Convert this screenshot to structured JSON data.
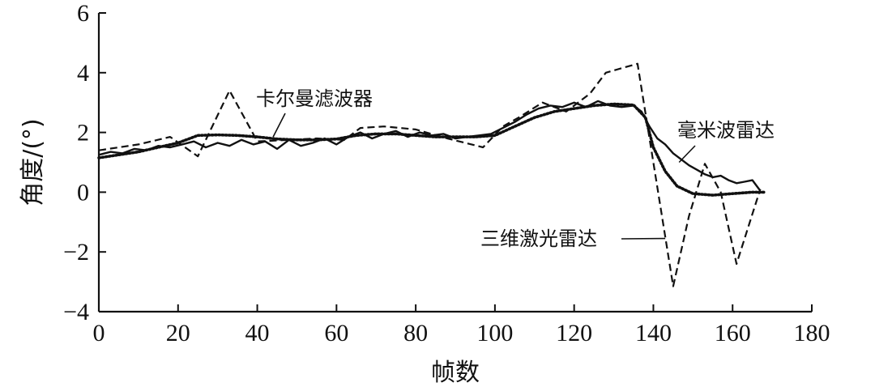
{
  "chart_data": {
    "type": "line",
    "title": "",
    "xlabel": "帧数",
    "ylabel": "角度/(°)",
    "xlim": [
      0,
      180
    ],
    "ylim": [
      -4,
      6
    ],
    "xticks": [
      0,
      20,
      40,
      60,
      80,
      100,
      120,
      140,
      160,
      180
    ],
    "yticks": [
      -4,
      -2,
      0,
      2,
      4,
      6
    ],
    "ytick_labels": [
      "−4",
      "−2",
      "0",
      "2",
      "4",
      "6"
    ],
    "grid": false,
    "legend": "none",
    "annotations": [
      {
        "text": "卡尔曼滤波器",
        "series": "卡尔曼滤波器"
      },
      {
        "text": "毫米波雷达",
        "series": "毫米波雷达"
      },
      {
        "text": "三维激光雷达",
        "series": "三维激光雷达"
      }
    ],
    "series": [
      {
        "name": "毫米波雷达",
        "style": "solid",
        "color": "#111111",
        "x": [
          0,
          3,
          6,
          9,
          12,
          15,
          18,
          21,
          24,
          27,
          30,
          33,
          36,
          39,
          42,
          45,
          48,
          51,
          54,
          57,
          60,
          63,
          66,
          69,
          72,
          75,
          78,
          81,
          84,
          87,
          90,
          93,
          96,
          99,
          102,
          105,
          108,
          111,
          114,
          117,
          120,
          123,
          126,
          129,
          132,
          135,
          137,
          139,
          141,
          143,
          145,
          147,
          149,
          151,
          153,
          155,
          157,
          159,
          161,
          163,
          165,
          167
        ],
        "y": [
          1.25,
          1.35,
          1.3,
          1.45,
          1.4,
          1.55,
          1.5,
          1.6,
          1.7,
          1.5,
          1.65,
          1.55,
          1.75,
          1.6,
          1.7,
          1.45,
          1.75,
          1.55,
          1.65,
          1.8,
          1.6,
          1.85,
          2.0,
          1.8,
          1.95,
          2.05,
          1.85,
          2.0,
          1.9,
          1.95,
          1.8,
          1.85,
          1.9,
          1.95,
          2.15,
          2.35,
          2.6,
          2.8,
          2.9,
          2.85,
          3.0,
          2.85,
          3.05,
          2.9,
          2.85,
          2.9,
          2.7,
          2.2,
          1.8,
          1.6,
          1.3,
          1.1,
          0.9,
          0.75,
          0.6,
          0.5,
          0.55,
          0.4,
          0.3,
          0.35,
          0.4,
          0.05
        ]
      },
      {
        "name": "三维激光雷达",
        "style": "dashed",
        "color": "#111111",
        "x": [
          0,
          10,
          18,
          25,
          33,
          40,
          48,
          55,
          62,
          66,
          72,
          80,
          88,
          97,
          102,
          106,
          112,
          118,
          124,
          128,
          136,
          140,
          145,
          149,
          153,
          157,
          161,
          167
        ],
        "y": [
          1.4,
          1.6,
          1.85,
          1.2,
          3.4,
          1.7,
          1.75,
          1.8,
          1.75,
          2.15,
          2.2,
          2.1,
          1.8,
          1.5,
          2.2,
          2.5,
          3.0,
          2.7,
          3.3,
          4.0,
          4.3,
          1.0,
          -3.15,
          -0.8,
          0.95,
          0.0,
          -2.4,
          0.1
        ]
      },
      {
        "name": "卡尔曼滤波器",
        "style": "dotted",
        "color": "#111111",
        "x": [
          0,
          5,
          10,
          15,
          20,
          25,
          30,
          35,
          40,
          45,
          50,
          55,
          60,
          65,
          70,
          75,
          80,
          85,
          90,
          95,
          100,
          105,
          110,
          115,
          120,
          125,
          130,
          135,
          138,
          140,
          143,
          146,
          150,
          155,
          160,
          165,
          168
        ],
        "y": [
          1.15,
          1.25,
          1.35,
          1.5,
          1.65,
          1.9,
          1.92,
          1.9,
          1.85,
          1.78,
          1.75,
          1.75,
          1.78,
          1.9,
          1.95,
          1.95,
          1.9,
          1.85,
          1.85,
          1.85,
          1.9,
          2.2,
          2.5,
          2.7,
          2.8,
          2.9,
          2.95,
          2.92,
          2.5,
          1.5,
          0.7,
          0.2,
          -0.05,
          -0.1,
          -0.05,
          0.0,
          0.0
        ]
      }
    ]
  }
}
